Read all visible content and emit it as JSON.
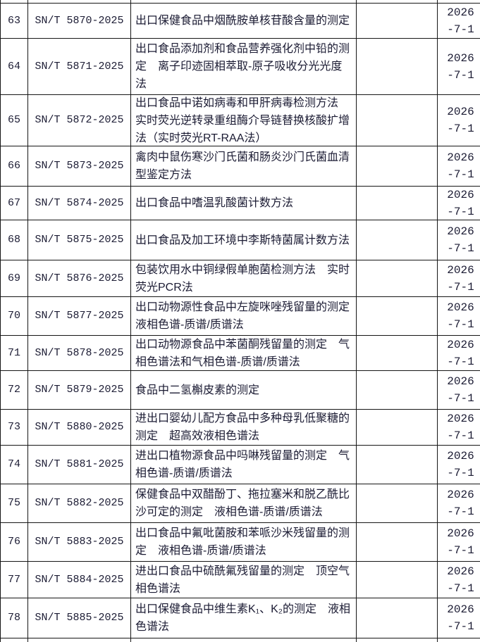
{
  "colors": {
    "text": "#1b1b33",
    "border": "#161616",
    "background": "#ffffff"
  },
  "table": {
    "rows": [
      {
        "no": "63",
        "code": "SN/T 5870-2025",
        "title": "出口保健食品中烟酰胺单核苷酸含量的测定",
        "remark": "",
        "date_line1": "2026",
        "date_line2": "-7-1"
      },
      {
        "no": "64",
        "code": "SN/T 5871-2025",
        "title": "出口食品添加剂和食品营养强化剂中铅的测定　离子印迹固相萃取-原子吸收分光光度法",
        "remark": "",
        "date_line1": "2026",
        "date_line2": "-7-1"
      },
      {
        "no": "65",
        "code": "SN/T 5872-2025",
        "title": "出口食品中诺如病毒和甲肝病毒检测方法　实时荧光逆转录重组酶介导链替换核酸扩增法（实时荧光RT-RAA法）",
        "remark": "",
        "date_line1": "2026",
        "date_line2": "-7-1"
      },
      {
        "no": "66",
        "code": "SN/T 5873-2025",
        "title": "禽肉中鼠伤寒沙门氏菌和肠炎沙门氏菌血清型鉴定方法",
        "remark": "",
        "date_line1": "2026",
        "date_line2": "-7-1"
      },
      {
        "no": "67",
        "code": "SN/T 5874-2025",
        "title": "出口食品中嗜温乳酸菌计数方法",
        "remark": "",
        "date_line1": "2026",
        "date_line2": "-7-1"
      },
      {
        "no": "68",
        "code": "SN/T 5875-2025",
        "title": "出口食品及加工环境中李斯特菌属计数方法",
        "remark": "",
        "date_line1": "2026",
        "date_line2": "-7-1"
      },
      {
        "no": "69",
        "code": "SN/T 5876-2025",
        "title": "包装饮用水中铜绿假单胞菌检测方法　实时荧光PCR法",
        "remark": "",
        "date_line1": "2026",
        "date_line2": "-7-1"
      },
      {
        "no": "70",
        "code": "SN/T 5877-2025",
        "title": "出口动物源性食品中左旋咪唑残留量的测定　液相色谱-质谱/质谱法",
        "remark": "",
        "date_line1": "2026",
        "date_line2": "-7-1"
      },
      {
        "no": "71",
        "code": "SN/T 5878-2025",
        "title": "出口动物源食品中苯菌酮残留量的测定　气相色谱法和气相色谱-质谱/质谱法",
        "remark": "",
        "date_line1": "2026",
        "date_line2": "-7-1"
      },
      {
        "no": "72",
        "code": "SN/T 5879-2025",
        "title": "食品中二氢槲皮素的测定",
        "remark": "",
        "date_line1": "2026",
        "date_line2": "-7-1"
      },
      {
        "no": "73",
        "code": "SN/T 5880-2025",
        "title": "进出口婴幼儿配方食品中多种母乳低聚糖的测定　超高效液相色谱法",
        "remark": "",
        "date_line1": "2026",
        "date_line2": "-7-1"
      },
      {
        "no": "74",
        "code": "SN/T 5881-2025",
        "title": "进出口植物源食品中吗啉残留量的测定　气相色谱-质谱/质谱法",
        "remark": "",
        "date_line1": "2026",
        "date_line2": "-7-1"
      },
      {
        "no": "75",
        "code": "SN/T 5882-2025",
        "title": "保健食品中双醋酚丁、拖拉塞米和脱乙酰比沙可定的测定　液相色谱-质谱/质谱法",
        "remark": "",
        "date_line1": "2026",
        "date_line2": "-7-1"
      },
      {
        "no": "76",
        "code": "SN/T 5883-2025",
        "title": "出口食品中氟吡菌胺和苯哌沙米残留量的测定　液相色谱-质谱/质谱法",
        "remark": "",
        "date_line1": "2026",
        "date_line2": "-7-1"
      },
      {
        "no": "77",
        "code": "SN/T 5884-2025",
        "title": "进出口食品中硫酰氟残留量的测定　顶空气相色谱法",
        "remark": "",
        "date_line1": "2026",
        "date_line2": "-7-1"
      },
      {
        "no": "78",
        "code": "SN/T 5885-2025",
        "title": "出口保健食品中维生素K₁、K₂的测定　液相色谱法",
        "remark": "",
        "date_line1": "2026",
        "date_line2": "-7-1"
      }
    ]
  }
}
